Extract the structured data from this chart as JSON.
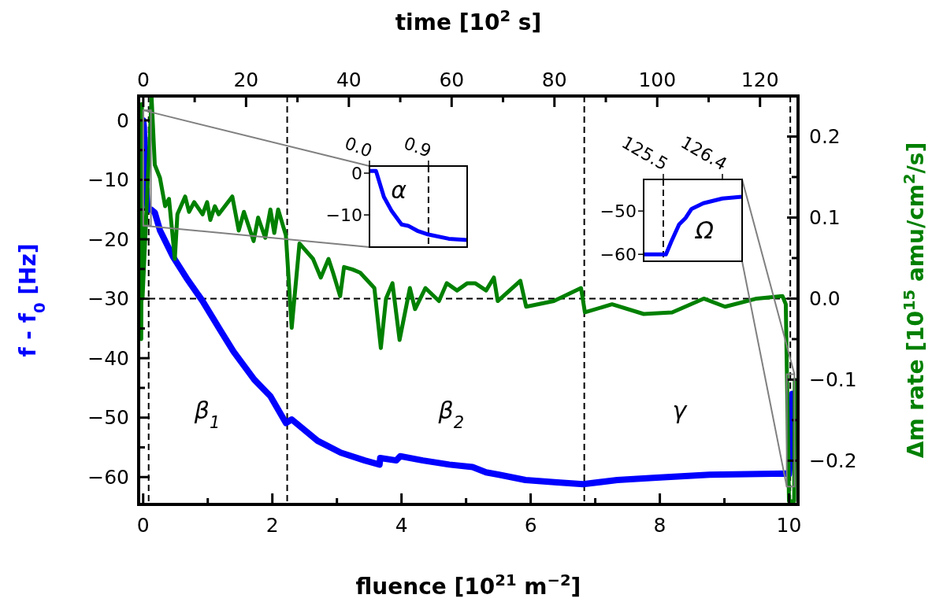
{
  "chart_data": [
    {
      "type": "line",
      "xlabel": "fluence [10$^{21}$ m$^{−2}$]",
      "x2label": "time [10$^{2}$ s]",
      "ylabel": "f - f$_{0}$ [Hz]",
      "y2label": "Δm rate [10$^{15}$ amu/cm$^{2}$/s]",
      "xlim": [
        -0.07,
        10.14
      ],
      "xticks": [
        0,
        {
          "value": 1,
          "label": null
        },
        2,
        {
          "value": 3,
          "label": null
        },
        4,
        {
          "value": 5,
          "label": null
        },
        6,
        {
          "value": 7,
          "label": null
        },
        8,
        {
          "value": 9,
          "label": null
        },
        10
      ],
      "x2lim": [
        -0.9,
        127.4
      ],
      "x2ticks": [
        0,
        {
          "value": 10,
          "label": null
        },
        20,
        {
          "value": 30,
          "label": null
        },
        40,
        {
          "value": 50,
          "label": null
        },
        60,
        {
          "value": 70,
          "label": null
        },
        80,
        {
          "value": 90,
          "label": null
        },
        100,
        {
          "value": 110,
          "label": null
        },
        120
      ],
      "ylim": [
        -64.6,
        4.1
      ],
      "yticks": [
        {
          "value": -60,
          "label": "−60"
        },
        {
          "value": -55,
          "label": null
        },
        {
          "value": -50,
          "label": "−50"
        },
        {
          "value": -45,
          "label": null
        },
        {
          "value": -40,
          "label": "−40"
        },
        {
          "value": -35,
          "label": null
        },
        {
          "value": -30,
          "label": "−30"
        },
        {
          "value": -25,
          "label": null
        },
        {
          "value": -20,
          "label": "−20"
        },
        {
          "value": -15,
          "label": null
        },
        {
          "value": -10,
          "label": "−10"
        },
        {
          "value": -5,
          "label": null
        },
        0
      ],
      "y2lim": [
        -0.254,
        0.25
      ],
      "y2ticks": [
        {
          "value": -0.2,
          "label": "−0.2"
        },
        {
          "value": -0.15,
          "label": null
        },
        {
          "value": -0.1,
          "label": "−0.1"
        },
        {
          "value": -0.05,
          "label": null
        },
        {
          "value": 0,
          "label": "0.0"
        },
        {
          "value": 0.05,
          "label": null
        },
        {
          "value": 0.1,
          "label": "0.1"
        },
        {
          "value": 0.15,
          "label": null
        },
        {
          "value": 0.2,
          "label": "0.2"
        }
      ],
      "series": [
        {
          "color": "#0000ff",
          "x": [
            0,
            0.01,
            0.03,
            0.05,
            0.07,
            0.12,
            0.18,
            0.26,
            0.465,
            0.67,
            0.92,
            1.2,
            1.4,
            1.72,
            1.97,
            2.21,
            2.3,
            2.7,
            3.06,
            3.43,
            3.66,
            3.67,
            3.92,
            3.98,
            4.33,
            4.74,
            5.1,
            5.31,
            5.51,
            5.92,
            6.41,
            6.81,
            7.34,
            7.95,
            8.77,
            9.95,
            10.0,
            10.03,
            10.05
          ],
          "values": [
            0,
            -1,
            -8,
            -12,
            -15,
            -15,
            -15.5,
            -18.5,
            -23,
            -26.5,
            -30.4,
            -35.4,
            -38.9,
            -43.6,
            -46.4,
            -50.9,
            -50.3,
            -53.9,
            -55.9,
            -57.2,
            -57.9,
            -56.8,
            -57.2,
            -56.5,
            -57.2,
            -57.9,
            -58.3,
            -59.2,
            -59.6,
            -60.5,
            -60.9,
            -61.2,
            -60.5,
            -60.1,
            -59.6,
            -59.4,
            -59.5,
            -55,
            -46
          ]
        },
        {
          "color": "#008000",
          "axis": "y2",
          "x": [
            -0.03,
            -0.02,
            -0.01,
            0.13,
            0.18,
            0.26,
            0.34,
            0.4,
            0.49,
            0.53,
            0.65,
            0.71,
            0.79,
            0.92,
            0.99,
            1.04,
            1.11,
            1.17,
            1.38,
            1.48,
            1.56,
            1.71,
            1.78,
            1.89,
            1.97,
            2.03,
            2.09,
            2.21,
            2.3,
            2.42,
            2.63,
            2.75,
            2.87,
            2.94,
            3.05,
            3.11,
            3.24,
            3.36,
            3.58,
            3.68,
            3.76,
            3.86,
            3.97,
            4.13,
            4.21,
            4.37,
            4.58,
            4.7,
            4.86,
            5.02,
            5.14,
            5.31,
            5.43,
            5.49,
            5.84,
            5.93,
            6.36,
            6.78,
            6.84,
            7.26,
            7.75,
            8.19,
            8.68,
            9.01,
            9.5,
            9.9,
            9.95,
            10.0,
            10.08,
            10.09
          ],
          "values": [
            -0.05,
            0.24,
            0.0,
            0.249,
            0.165,
            0.149,
            0.114,
            0.123,
            0.049,
            0.104,
            0.126,
            0.107,
            0.119,
            0.104,
            0.119,
            0.097,
            0.114,
            0.104,
            0.126,
            0.084,
            0.107,
            0.071,
            0.1,
            0.075,
            0.11,
            0.081,
            0.11,
            0.078,
            -0.036,
            0.068,
            0.049,
            0.026,
            0.049,
            0.032,
            0.003,
            0.039,
            0.036,
            0.032,
            0.013,
            -0.061,
            0,
            0.019,
            -0.051,
            0.013,
            -0.013,
            0.013,
            -0.003,
            0.019,
            0.01,
            0.019,
            0.019,
            0.01,
            0.026,
            -0.003,
            0.022,
            -0.01,
            -0.003,
            0.013,
            -0.017,
            -0.007,
            -0.019,
            -0.017,
            0,
            -0.01,
            0,
            0.003,
            -0.007,
            -0.25,
            -0.25,
            -0.1
          ]
        }
      ],
      "ref_lines": [
        {
          "axis": "x",
          "value": 0.085
        },
        {
          "axis": "x",
          "value": 2.23
        },
        {
          "axis": "x",
          "value": 6.83
        },
        {
          "axis": "x",
          "value": 10.02
        },
        {
          "axis": "y2",
          "value": 0
        }
      ],
      "line_style": "solid",
      "marker": "none",
      "grid": false,
      "annotations": [
        "β$_{1}$",
        "β$_{2}$",
        "γ"
      ]
    },
    {
      "type": "line",
      "xlim": [
        0,
        1.49
      ],
      "xticks": [
        {
          "value": 0,
          "label": "0.0"
        },
        0.9
      ],
      "ylim": [
        -17.7,
        1.7
      ],
      "yticks": [
        {
          "value": -10,
          "label": "−10"
        },
        0
      ],
      "series": [
        {
          "color": "#0000ff",
          "x": [
            0,
            0.1,
            0.22,
            0.34,
            0.49,
            0.59,
            0.73,
            0.9,
            1.21,
            1.49
          ],
          "values": [
            0.5,
            0.5,
            -5.7,
            -9.1,
            -12.3,
            -12.6,
            -13.8,
            -14.7,
            -15.7,
            -16
          ]
        }
      ],
      "ref_lines": [
        {
          "axis": "x",
          "value": 0.9
        }
      ],
      "annotations": [
        "α"
      ]
    },
    {
      "type": "line",
      "xlim": [
        125.2,
        126.7
      ],
      "xticks": [
        125.5,
        126.4
      ],
      "ylim": [
        -61.6,
        -42.7
      ],
      "yticks": [
        {
          "value": -60,
          "label": "−60"
        },
        {
          "value": -50,
          "label": "−50"
        }
      ],
      "series": [
        {
          "color": "#0000ff",
          "x": [
            125.2,
            125.54,
            125.62,
            125.74,
            125.84,
            125.93,
            126.11,
            126.4,
            126.7
          ],
          "values": [
            -60,
            -60,
            -57.1,
            -53.1,
            -51.6,
            -49.5,
            -48.2,
            -47.1,
            -46.7
          ]
        }
      ],
      "ref_lines": [
        {
          "axis": "x",
          "value": 125.5
        }
      ],
      "annotations": [
        "Ω"
      ]
    }
  ]
}
